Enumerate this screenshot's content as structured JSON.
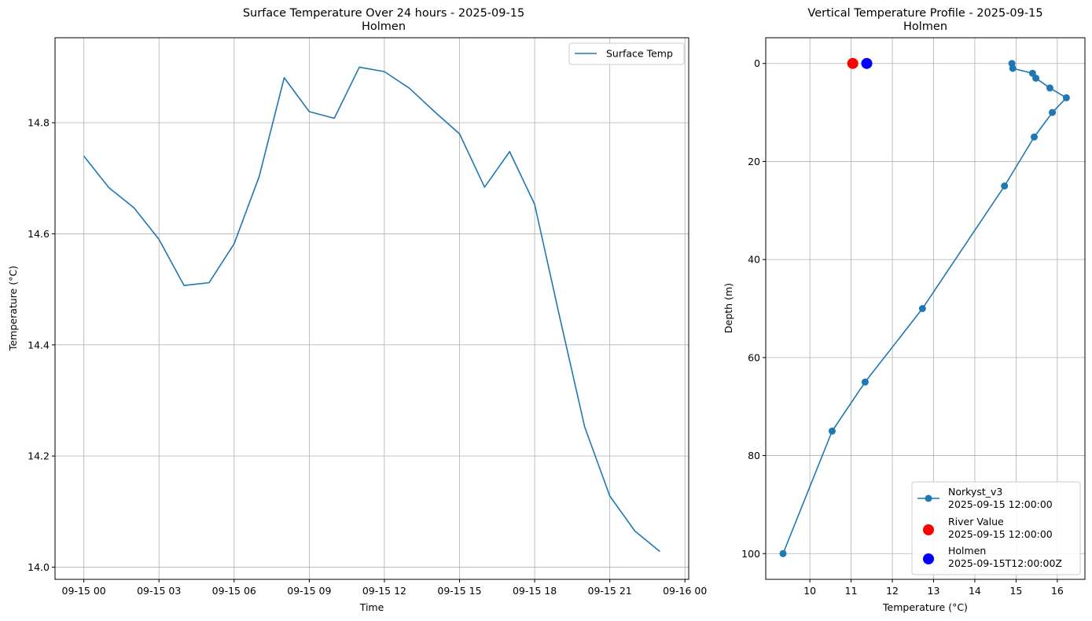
{
  "chart_data": [
    {
      "type": "line",
      "title": "Surface Temperature Over 24 hours - 2025-09-15",
      "subtitle": "Holmen",
      "xlabel": "Time",
      "ylabel": "Temperature (°C)",
      "x_ticks": [
        "09-15 00",
        "09-15 03",
        "09-15 06",
        "09-15 09",
        "09-15 12",
        "09-15 15",
        "09-15 18",
        "09-15 21",
        "09-16 00"
      ],
      "y_ticks": [
        "14.0",
        "14.2",
        "14.4",
        "14.6",
        "14.8"
      ],
      "xlim_hours": [
        -1.15,
        24.15
      ],
      "ylim": [
        13.978,
        14.953
      ],
      "grid": true,
      "legend_position": "top-right",
      "color": "#1f77b4",
      "series": [
        {
          "name": "Surface Temp",
          "x_hours": [
            0,
            1,
            2,
            3,
            4,
            5,
            6,
            7,
            8,
            9,
            10,
            11,
            12,
            13,
            14,
            15,
            16,
            17,
            18,
            19,
            20,
            21,
            22,
            23
          ],
          "values": [
            14.74,
            14.683,
            14.647,
            14.59,
            14.507,
            14.512,
            14.582,
            14.703,
            14.881,
            14.82,
            14.808,
            14.9,
            14.892,
            14.862,
            14.82,
            14.78,
            14.684,
            14.748,
            14.653,
            14.45,
            14.252,
            14.128,
            14.065,
            14.028
          ]
        }
      ]
    },
    {
      "type": "scatter",
      "title": "Vertical Temperature Profile - 2025-09-15",
      "subtitle": "Holmen",
      "xlabel": "Temperature (°C)",
      "ylabel": "Depth (m)",
      "x_ticks": [
        "10",
        "11",
        "12",
        "13",
        "14",
        "15",
        "16"
      ],
      "y_ticks": [
        "0",
        "20",
        "40",
        "60",
        "80",
        "100"
      ],
      "xlim": [
        8.93,
        16.67
      ],
      "ylim_inverted": [
        105.25,
        -5.25
      ],
      "grid": true,
      "legend_position": "bottom-right",
      "series": [
        {
          "name": "Norkyst_v3",
          "name_line2": "2025-09-15 12:00:00",
          "style": "line-marker",
          "color": "#1f77b4",
          "temperature": [
            14.9,
            14.92,
            15.4,
            15.48,
            15.82,
            16.22,
            15.88,
            15.44,
            14.72,
            12.73,
            11.34,
            10.54,
            9.35
          ],
          "depth": [
            0,
            1,
            2,
            3,
            5,
            7,
            10,
            15,
            25,
            50,
            65,
            75,
            100
          ]
        },
        {
          "name": "River Value",
          "name_line2": "2025-09-15 12:00:00",
          "style": "marker",
          "color": "#ff0000",
          "temperature": [
            11.04
          ],
          "depth": [
            0
          ]
        },
        {
          "name": "Holmen",
          "name_line2": "2025-09-15T12:00:00Z",
          "style": "marker",
          "color": "#0000ff",
          "temperature": [
            11.38
          ],
          "depth": [
            0
          ]
        }
      ]
    }
  ]
}
